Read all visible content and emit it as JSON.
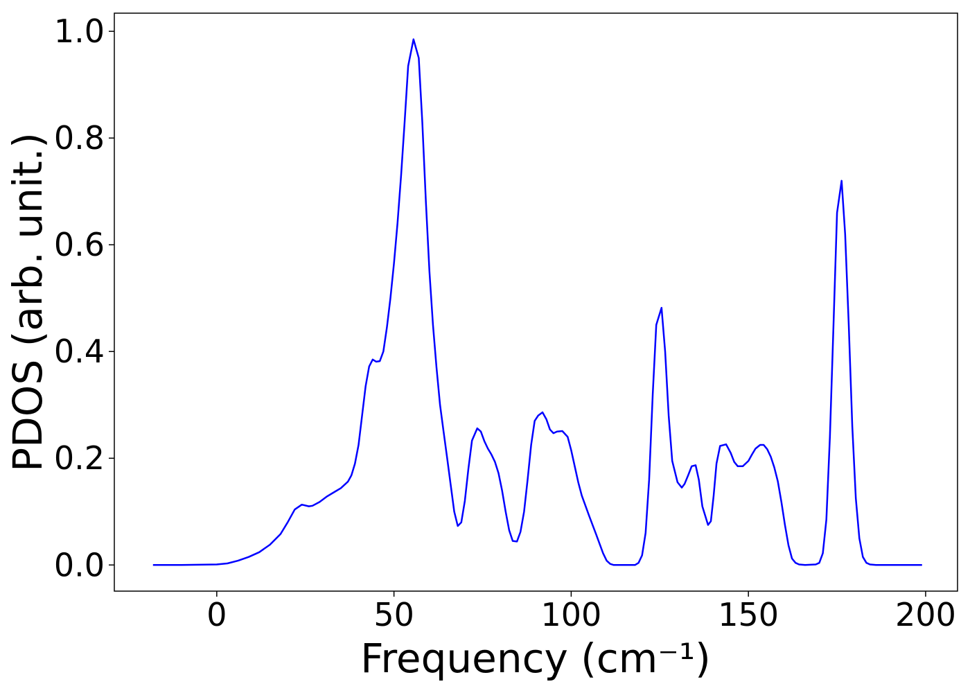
{
  "chart_data": {
    "type": "line",
    "xlabel": "Frequency (cm⁻¹)",
    "ylabel": "PDOS (arb. unit.)",
    "xlim": [
      -28.9,
      209
    ],
    "ylim": [
      -0.049,
      1.034
    ],
    "xticks": [
      0,
      50,
      100,
      150,
      200
    ],
    "yticks": [
      {
        "value": 0,
        "label": "0.0"
      },
      {
        "value": 0.2,
        "label": "0.2"
      },
      {
        "value": 0.4,
        "label": "0.4"
      },
      {
        "value": 0.6,
        "label": "0.6"
      },
      {
        "value": 0.8,
        "label": "0.8"
      },
      {
        "value": 1,
        "label": "1.0"
      }
    ],
    "grid": false,
    "x": [
      -18,
      -10,
      0,
      3,
      6,
      9,
      12,
      15,
      18,
      20,
      22,
      24,
      26,
      27,
      29,
      31,
      33,
      35,
      37,
      38,
      39,
      40,
      41,
      42,
      43,
      44,
      45,
      46,
      47,
      48,
      49,
      50,
      51,
      52,
      53,
      54,
      55.5,
      57,
      58,
      59,
      60,
      61,
      62,
      63,
      64,
      65,
      66,
      67,
      68,
      69,
      70,
      71,
      72,
      73.5,
      74.5,
      75.5,
      76.5,
      77.5,
      78.5,
      79.5,
      80.5,
      81.5,
      82.5,
      83.5,
      84.7,
      85.7,
      86.7,
      87.7,
      88.7,
      89.7,
      90.7,
      91.9,
      93,
      94,
      95,
      96,
      97.5,
      99,
      100,
      101,
      102,
      103,
      105,
      107,
      109,
      110,
      111,
      112,
      118,
      119,
      120,
      121,
      122,
      123,
      124,
      125.5,
      126.5,
      127.5,
      128.5,
      130,
      131.2,
      132,
      133,
      134,
      135.1,
      136,
      137,
      138.6,
      139.4,
      140.2,
      141,
      142,
      143.7,
      145,
      146,
      147,
      148.4,
      150,
      151,
      152,
      153.3,
      154.3,
      155.3,
      156.3,
      157.3,
      158.3,
      159.3,
      160.3,
      161.3,
      162.3,
      163.3,
      164.3,
      166,
      169,
      170,
      171,
      172,
      173,
      174,
      175,
      176.3,
      177.3,
      178.3,
      179.3,
      180.3,
      181.3,
      182.3,
      183.3,
      184.3,
      186,
      199
    ],
    "series": [
      {
        "color": "#0000ff",
        "values": [
          0,
          0,
          0.001,
          0.003,
          0.008,
          0.015,
          0.024,
          0.038,
          0.058,
          0.08,
          0.104,
          0.113,
          0.11,
          0.111,
          0.118,
          0.128,
          0.136,
          0.144,
          0.156,
          0.168,
          0.19,
          0.225,
          0.28,
          0.335,
          0.372,
          0.385,
          0.381,
          0.382,
          0.4,
          0.445,
          0.5,
          0.565,
          0.64,
          0.73,
          0.83,
          0.935,
          0.985,
          0.95,
          0.83,
          0.68,
          0.55,
          0.45,
          0.37,
          0.3,
          0.25,
          0.2,
          0.15,
          0.1,
          0.073,
          0.08,
          0.12,
          0.18,
          0.233,
          0.256,
          0.25,
          0.232,
          0.218,
          0.207,
          0.193,
          0.172,
          0.14,
          0.1,
          0.065,
          0.045,
          0.044,
          0.062,
          0.1,
          0.16,
          0.225,
          0.27,
          0.28,
          0.286,
          0.273,
          0.254,
          0.247,
          0.25,
          0.251,
          0.24,
          0.215,
          0.185,
          0.155,
          0.13,
          0.093,
          0.058,
          0.022,
          0.008,
          0.002,
          0,
          0,
          0.004,
          0.018,
          0.06,
          0.16,
          0.32,
          0.45,
          0.482,
          0.4,
          0.28,
          0.195,
          0.155,
          0.145,
          0.152,
          0.168,
          0.185,
          0.187,
          0.16,
          0.11,
          0.075,
          0.082,
          0.13,
          0.19,
          0.223,
          0.226,
          0.21,
          0.193,
          0.185,
          0.185,
          0.195,
          0.207,
          0.218,
          0.225,
          0.225,
          0.217,
          0.203,
          0.183,
          0.157,
          0.118,
          0.075,
          0.037,
          0.012,
          0.004,
          0.001,
          0,
          0.001,
          0.004,
          0.022,
          0.085,
          0.24,
          0.45,
          0.66,
          0.72,
          0.62,
          0.45,
          0.26,
          0.125,
          0.05,
          0.015,
          0.004,
          0.001,
          0,
          0
        ]
      }
    ]
  }
}
